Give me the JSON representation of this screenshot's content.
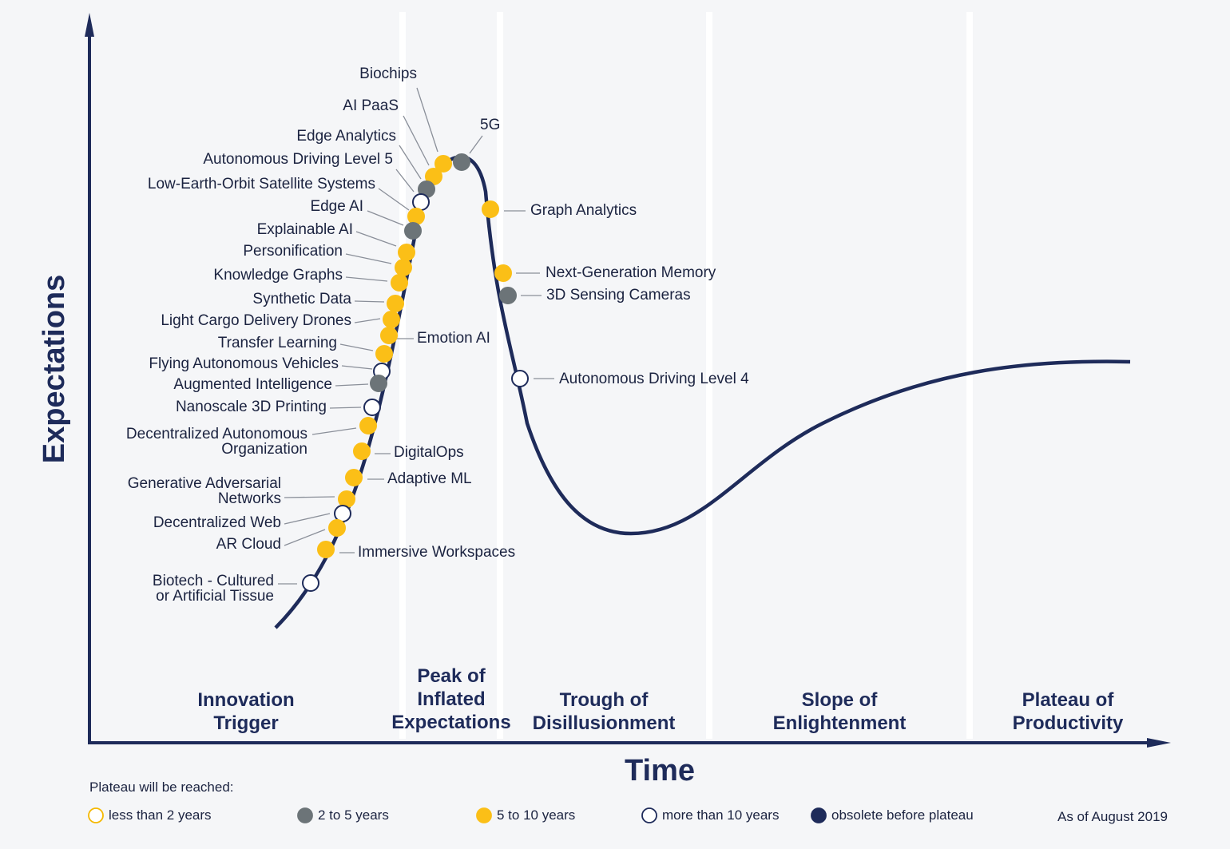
{
  "chart_data": {
    "type": "hype-cycle",
    "axes": {
      "y": "Expectations",
      "x": "Time"
    },
    "phases": [
      {
        "id": "innovation-trigger",
        "lines": [
          "Innovation",
          "Trigger"
        ]
      },
      {
        "id": "peak",
        "lines": [
          "Peak of",
          "Inflated",
          "Expectations"
        ]
      },
      {
        "id": "trough",
        "lines": [
          "Trough of",
          "Disillusionment"
        ]
      },
      {
        "id": "slope",
        "lines": [
          "Slope of",
          "Enlightenment"
        ]
      },
      {
        "id": "plateau",
        "lines": [
          "Plateau of",
          "Productivity"
        ]
      }
    ],
    "legend": {
      "title": "Plateau will be reached:",
      "categories": [
        {
          "key": "lt2",
          "label": "less than 2 years",
          "color": "#ffffff",
          "stroke": "#f5b800"
        },
        {
          "key": "y2to5",
          "label": "2 to 5 years",
          "color": "#6c7478",
          "stroke": "#6c7478"
        },
        {
          "key": "y5to10",
          "label": "5 to 10 years",
          "color": "#fbbf17",
          "stroke": "#fbbf17"
        },
        {
          "key": "gt10",
          "label": "more than 10 years",
          "color": "#ffffff",
          "stroke": "#1e2b5a"
        },
        {
          "key": "obsolete",
          "label": "obsolete before plateau",
          "color": "#1e2b5a",
          "stroke": "#1e2b5a"
        }
      ]
    },
    "as_of": "As of August 2019",
    "technologies": [
      {
        "name": "Biochips",
        "category": "y5to10"
      },
      {
        "name": "AI PaaS",
        "category": "y5to10"
      },
      {
        "name": "Edge Analytics",
        "category": "y2to5"
      },
      {
        "name": "Autonomous Driving Level 5",
        "category": "gt10"
      },
      {
        "name": "Low-Earth-Orbit Satellite Systems",
        "category": "y5to10"
      },
      {
        "name": "Edge AI",
        "category": "y2to5"
      },
      {
        "name": "Explainable AI",
        "category": "y5to10"
      },
      {
        "name": "Personification",
        "category": "y5to10"
      },
      {
        "name": "Knowledge Graphs",
        "category": "y5to10"
      },
      {
        "name": "Synthetic Data",
        "category": "y5to10"
      },
      {
        "name": "Light Cargo Delivery Drones",
        "category": "y5to10"
      },
      {
        "name": "Transfer Learning",
        "category": "y5to10"
      },
      {
        "name": "Flying Autonomous Vehicles",
        "category": "gt10"
      },
      {
        "name": "Augmented Intelligence",
        "category": "y2to5"
      },
      {
        "name": "Nanoscale 3D Printing",
        "category": "gt10"
      },
      {
        "name": "Decentralized Autonomous\nOrganization",
        "category": "y5to10"
      },
      {
        "name": "Generative Adversarial\nNetworks",
        "category": "y5to10"
      },
      {
        "name": "Decentralized Web",
        "category": "gt10"
      },
      {
        "name": "AR Cloud",
        "category": "y5to10"
      },
      {
        "name": "Biotech - Cultured\nor Artificial Tissue",
        "category": "gt10"
      },
      {
        "name": "Emotion AI",
        "category": "y5to10"
      },
      {
        "name": "DigitalOps",
        "category": "y5to10"
      },
      {
        "name": "Adaptive ML",
        "category": "y5to10"
      },
      {
        "name": "Immersive Workspaces",
        "category": "y5to10"
      },
      {
        "name": "5G",
        "category": "y2to5"
      },
      {
        "name": "Graph Analytics",
        "category": "y5to10"
      },
      {
        "name": "Next-Generation Memory",
        "category": "y5to10"
      },
      {
        "name": "3D Sensing Cameras",
        "category": "y2to5"
      },
      {
        "name": "Autonomous Driving Level 4",
        "category": "gt10"
      }
    ]
  }
}
